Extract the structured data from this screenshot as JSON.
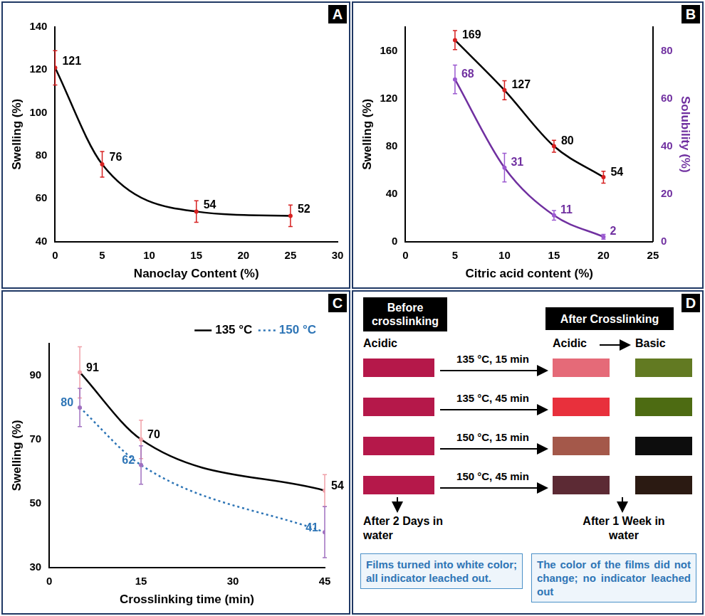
{
  "chart_data": [
    {
      "panel": "A",
      "type": "line",
      "xlabel": "Nanoclay Content (%)",
      "ylabel": "Swelling (%)",
      "x": [
        0,
        5,
        15,
        25
      ],
      "values": [
        121,
        76,
        54,
        52
      ],
      "errors": [
        8,
        6,
        5,
        5
      ],
      "color": "#000000",
      "marker": "circle",
      "line_style": "solid",
      "xlim": [
        0,
        30
      ],
      "xticks": [
        0,
        5,
        10,
        15,
        20,
        25,
        30
      ],
      "ylim": [
        40,
        140
      ],
      "yticks": [
        40,
        60,
        80,
        100,
        120,
        140
      ],
      "grid": false,
      "data_labels": true
    },
    {
      "panel": "B",
      "type": "line",
      "xlabel": "Citric acid content (%)",
      "ylabel": "Swelling (%)",
      "y2label": "Solubility (%)",
      "x": [
        5,
        10,
        15,
        20
      ],
      "series": [
        {
          "name": "Swelling (%)",
          "color": "#000000",
          "values": [
            169,
            127,
            80,
            54
          ],
          "errors": [
            8,
            8,
            5,
            5
          ],
          "marker": "circle",
          "line_style": "solid"
        },
        {
          "name": "Solubility (%)",
          "color": "#7030a0",
          "values": [
            68,
            31,
            11,
            2
          ],
          "errors": [
            6,
            6,
            2,
            1
          ],
          "marker": "circle",
          "line_style": "solid",
          "axis": "y2"
        }
      ],
      "xlim": [
        0,
        25
      ],
      "xticks": [
        0,
        5,
        10,
        15,
        20,
        25
      ],
      "ylim": [
        0,
        180
      ],
      "yticks": [
        0,
        40,
        80,
        120,
        160
      ],
      "y2lim": [
        0,
        90
      ],
      "y2ticks": [
        0,
        20,
        40,
        60,
        80
      ],
      "grid": false,
      "data_labels": true
    },
    {
      "panel": "C",
      "type": "line",
      "xlabel": "Crosslinking time (min)",
      "ylabel": "Swelling (%)",
      "x": [
        5,
        15,
        45
      ],
      "series": [
        {
          "name": "135 °C",
          "color": "#000000",
          "values": [
            91,
            70,
            54
          ],
          "errors": [
            8,
            6,
            5
          ],
          "marker": "circle",
          "line_style": "solid"
        },
        {
          "name": "150 °C",
          "color": "#2e75b6",
          "values": [
            80,
            62,
            41
          ],
          "errors": [
            6,
            6,
            8
          ],
          "marker": "circle",
          "line_style": "dotted"
        }
      ],
      "xlim": [
        0,
        45
      ],
      "xticks": [
        0,
        15,
        30,
        45
      ],
      "ylim": [
        30,
        100
      ],
      "yticks": [
        30,
        50,
        70,
        90
      ],
      "grid": false,
      "data_labels": true,
      "legend": "top-right"
    }
  ],
  "diagram": {
    "panel": "D",
    "before": {
      "header": "Before crosslinking",
      "label": "Acidic",
      "note": "After 2 Days in water",
      "result": "Films turned into white color; all indicator leached out."
    },
    "after": {
      "header": "After Crosslinking",
      "labels": [
        "Acidic",
        "Basic"
      ],
      "note": "After 1 Week in water",
      "result": "The color of the films did not change; no indicator leached out"
    },
    "rows": [
      {
        "condition": "135 °C, 15 min",
        "colors": [
          "#b5184a",
          "#e56a78",
          "#627a22"
        ]
      },
      {
        "condition": "135 °C, 45 min",
        "colors": [
          "#b5184a",
          "#e8303c",
          "#4d6b12"
        ]
      },
      {
        "condition": "150 °C, 15 min",
        "colors": [
          "#b5184a",
          "#a4584a",
          "#0d0d0d"
        ]
      },
      {
        "condition": "150 °C, 45 min",
        "colors": [
          "#b5184a",
          "#5c2a34",
          "#2b1a12"
        ]
      }
    ]
  }
}
